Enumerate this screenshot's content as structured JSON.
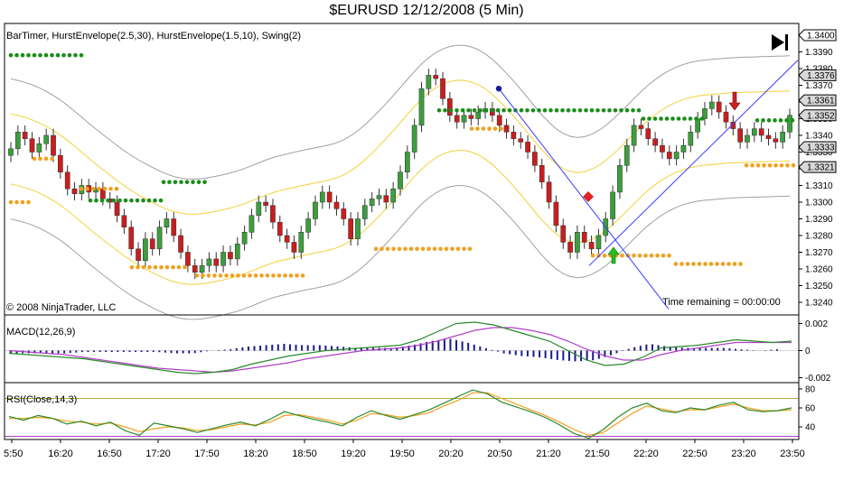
{
  "title": "$EURUSD  12/12/2008 (5 Min)",
  "price_panel": {
    "indicators_label": "BarTimer, HurstEnvelope(2.5,30), HurstEnvelope(1.5,10), Swing(2)",
    "copyright": "© 2008 NinjaTrader, LLC",
    "time_remaining": "Time remaining = 00:00:00",
    "boxed_prices": [
      "1.3400",
      "1.3376",
      "1.3361",
      "1.3352",
      "1.3333",
      "1.3321"
    ],
    "colors": {
      "up": "#3d9e3d",
      "down": "#c81e1e",
      "swing_high": "#1a8c1a",
      "swing_low": "#f0a020",
      "outer_envelope": "#a0a0a0",
      "inner_envelope": "#f2d23a",
      "trendline": "#3a3aff"
    }
  },
  "macd_panel": {
    "label": "MACD(12,26,9)",
    "colors": {
      "macd": "#2a8a2a",
      "signal": "#b040c8",
      "histogram": "#1a1a8c"
    }
  },
  "rsi_panel": {
    "label": "RSI(Close,14,3)",
    "colors": {
      "rsi": "#2a8a2a",
      "avg": "#f0a020",
      "levels": "#b0b040"
    }
  },
  "chart_data": [
    {
      "type": "candlestick",
      "x_ticks": [
        "5:50",
        "16:20",
        "16:50",
        "17:20",
        "17:50",
        "18:20",
        "18:50",
        "19:20",
        "19:50",
        "20:20",
        "20:50",
        "21:20",
        "21:50",
        "22:20",
        "22:50",
        "23:20",
        "23:50"
      ],
      "y_ticks": [
        "1.3400",
        "1.3390",
        "1.3380",
        "1.3370",
        "1.3360",
        "1.3350",
        "1.3340",
        "1.3330",
        "1.3320",
        "1.3310",
        "1.3300",
        "1.3290",
        "1.3280",
        "1.3270",
        "1.3260",
        "1.3250",
        "1.3240"
      ],
      "ylim": [
        1.3234,
        1.3405
      ],
      "closes": [
        1.3332,
        1.3342,
        1.3338,
        1.333,
        1.3335,
        1.334,
        1.3328,
        1.3318,
        1.3308,
        1.3305,
        1.331,
        1.3306,
        1.3308,
        1.3302,
        1.33,
        1.3292,
        1.3285,
        1.3272,
        1.3265,
        1.3278,
        1.3272,
        1.3285,
        1.329,
        1.328,
        1.327,
        1.3262,
        1.3258,
        1.3262,
        1.3266,
        1.3262,
        1.327,
        1.3266,
        1.3275,
        1.3282,
        1.3292,
        1.33,
        1.3298,
        1.3288,
        1.328,
        1.3276,
        1.327,
        1.3282,
        1.329,
        1.33,
        1.3306,
        1.33,
        1.3296,
        1.329,
        1.3278,
        1.329,
        1.3298,
        1.3302,
        1.3304,
        1.33,
        1.3308,
        1.3318,
        1.333,
        1.3346,
        1.3368,
        1.3376,
        1.3374,
        1.3362,
        1.3352,
        1.3348,
        1.3352,
        1.335,
        1.3354,
        1.3356,
        1.3352,
        1.3346,
        1.3342,
        1.3338,
        1.3336,
        1.333,
        1.3322,
        1.3312,
        1.33,
        1.3286,
        1.3276,
        1.327,
        1.3282,
        1.3276,
        1.3272,
        1.328,
        1.329,
        1.3306,
        1.3322,
        1.3334,
        1.3346,
        1.3344,
        1.3338,
        1.3334,
        1.333,
        1.3326,
        1.333,
        1.3334,
        1.3342,
        1.335,
        1.3356,
        1.336,
        1.3354,
        1.3348,
        1.3344,
        1.3336,
        1.334,
        1.3344,
        1.334,
        1.3338,
        1.3336,
        1.3342,
        1.3352
      ],
      "swing_highs": [
        1.3388,
        1.3355,
        1.3301,
        1.3312,
        1.335,
        1.3349
      ],
      "swing_lows": [
        1.3326,
        1.3308,
        1.3261,
        1.3256,
        1.3272,
        1.3268,
        1.3344,
        1.3263,
        1.3322,
        1.3335
      ]
    },
    {
      "type": "line",
      "title": "MACD(12,26,9)",
      "y_ticks": [
        "0.002",
        "0",
        "-0.002"
      ],
      "ylim": [
        -0.0023,
        0.0023
      ],
      "series": [
        {
          "name": "MACD",
          "values": [
            -0.0002,
            -0.0003,
            -0.0004,
            -0.0005,
            -0.0006,
            -0.0008,
            -0.001,
            -0.0012,
            -0.0014,
            -0.0016,
            -0.0017,
            -0.0016,
            -0.0014,
            -0.001,
            -0.0007,
            -0.0004,
            -0.0002,
            0.0,
            0.0001,
            0.0002,
            0.0003,
            0.0004,
            0.0008,
            0.0014,
            0.002,
            0.0021,
            0.0019,
            0.0015,
            0.0011,
            0.0007,
            0.0,
            -0.0007,
            -0.0011,
            -0.001,
            -0.0005,
            0.0002,
            0.0003,
            0.0004,
            0.0006,
            0.0008,
            0.0007,
            0.0006,
            0.0007
          ]
        },
        {
          "name": "Signal",
          "values": [
            0.0,
            -0.0001,
            -0.0002,
            -0.0003,
            -0.0005,
            -0.0007,
            -0.0009,
            -0.0011,
            -0.0013,
            -0.0014,
            -0.0015,
            -0.0016,
            -0.0015,
            -0.0013,
            -0.0011,
            -0.0009,
            -0.0006,
            -0.0004,
            -0.0002,
            0.0,
            0.0001,
            0.0002,
            0.0004,
            0.0007,
            0.0011,
            0.0015,
            0.0017,
            0.0017,
            0.0015,
            0.0012,
            0.0007,
            0.0001,
            -0.0004,
            -0.0007,
            -0.0007,
            -0.0003,
            0.0,
            0.0002,
            0.0004,
            0.0006,
            0.0006,
            0.0006,
            0.0006
          ]
        },
        {
          "name": "Histogram",
          "values": [
            -0.0002,
            -0.0002,
            -0.0002,
            -0.0002,
            -0.0001,
            -0.0001,
            -0.0001,
            -0.0001,
            -0.0001,
            -0.0002,
            -0.0002,
            0.0,
            0.0001,
            0.0003,
            0.0004,
            0.0005,
            0.0004,
            0.0004,
            0.0003,
            0.0002,
            0.0002,
            0.0002,
            0.0004,
            0.0007,
            0.0009,
            0.0006,
            0.0002,
            -0.0002,
            -0.0004,
            -0.0005,
            -0.0007,
            -0.0008,
            -0.0007,
            -0.0003,
            0.0002,
            0.0005,
            0.0003,
            0.0002,
            0.0002,
            0.0002,
            0.0001,
            0.0,
            0.0001
          ]
        }
      ]
    },
    {
      "type": "line",
      "title": "RSI(Close,14,3)",
      "y_ticks": [
        "80",
        "60",
        "40"
      ],
      "ylim": [
        24,
        83
      ],
      "series": [
        {
          "name": "RSI",
          "values": [
            51,
            47,
            52,
            49,
            43,
            46,
            41,
            45,
            36,
            31,
            44,
            41,
            38,
            34,
            38,
            42,
            45,
            41,
            48,
            56,
            52,
            48,
            45,
            41,
            50,
            57,
            52,
            48,
            53,
            58,
            65,
            72,
            79,
            75,
            66,
            61,
            56,
            50,
            42,
            33,
            28,
            37,
            50,
            60,
            65,
            57,
            55,
            60,
            58,
            63,
            66,
            58,
            56,
            57,
            60
          ]
        },
        {
          "name": "Avg",
          "values": [
            49,
            49,
            50,
            49,
            46,
            45,
            43,
            44,
            40,
            35,
            38,
            40,
            39,
            36,
            37,
            40,
            43,
            42,
            45,
            52,
            53,
            50,
            47,
            43,
            47,
            54,
            53,
            50,
            52,
            55,
            62,
            68,
            76,
            76,
            70,
            64,
            58,
            52,
            45,
            37,
            31,
            34,
            44,
            54,
            62,
            59,
            56,
            58,
            58,
            61,
            64,
            60,
            57,
            57,
            58
          ]
        }
      ],
      "levels": [
        70,
        30
      ]
    }
  ]
}
